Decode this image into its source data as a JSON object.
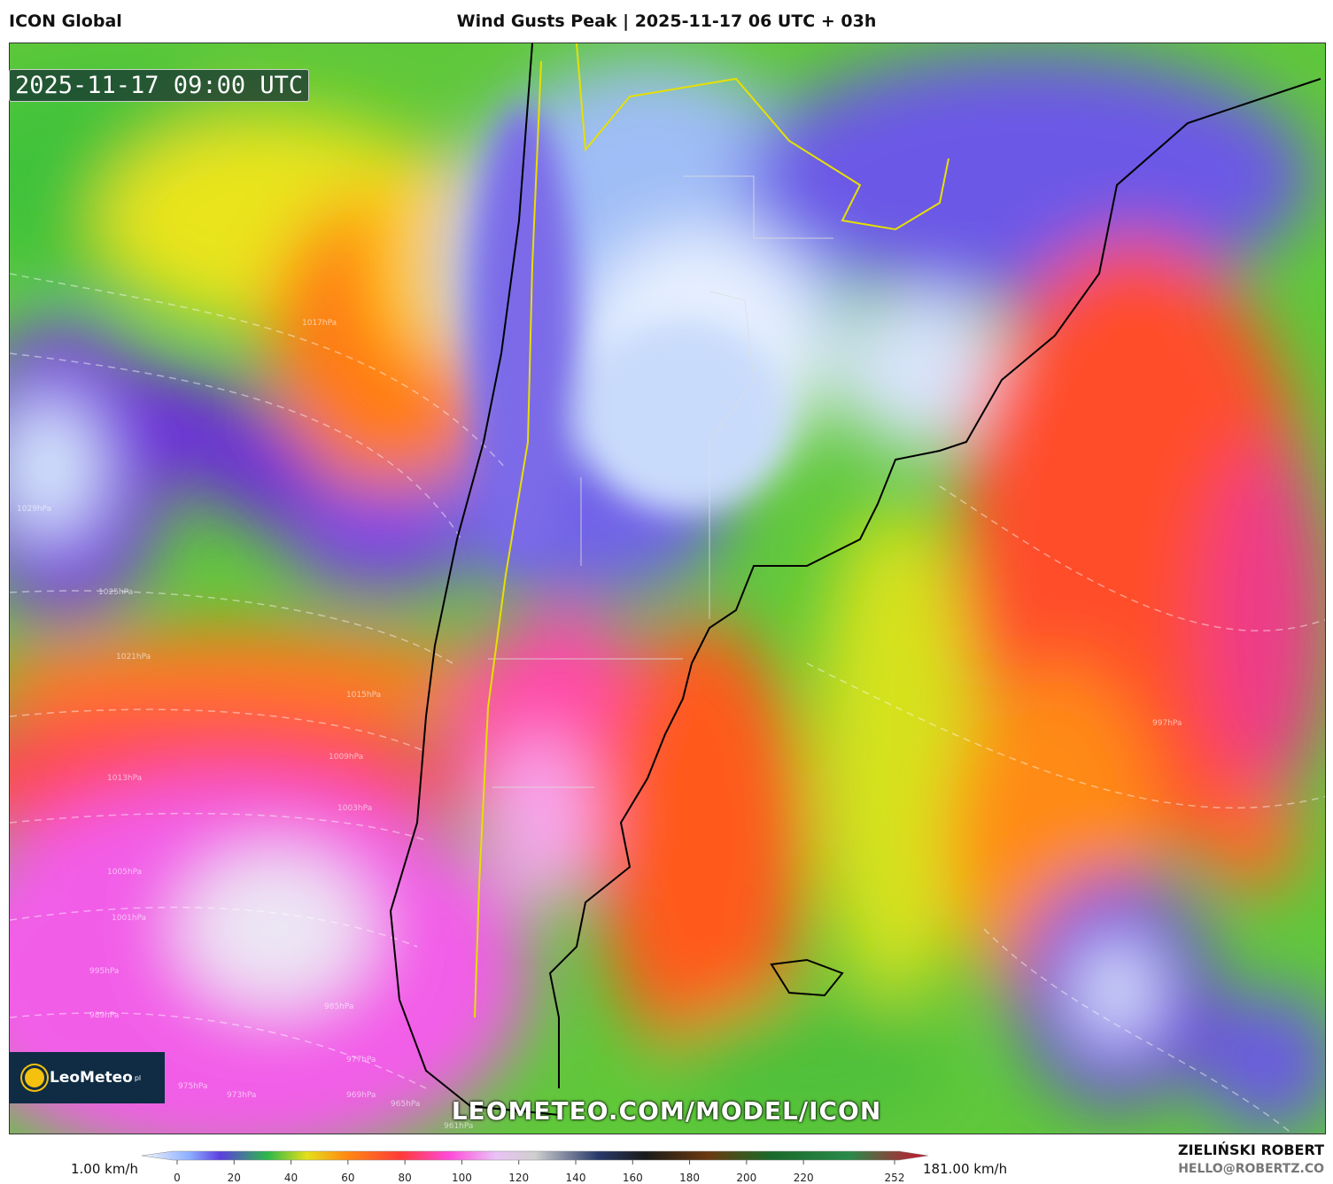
{
  "header": {
    "model": "ICON Global",
    "title": "Wind Gusts Peak | 2025-11-17 06 UTC + 03h"
  },
  "map": {
    "valid_time": "2025-11-17 09:00 UTC",
    "watermark": "LEOMETEO.COM/MODEL/ICON",
    "logo": "LeoMeteo",
    "logo_suffix": "pl",
    "isobar_labels": [
      "1029hPa",
      "1025hPa",
      "1021hPa",
      "1017hPa",
      "1015hPa",
      "1013hPa",
      "1009hPa",
      "1005hPa",
      "1003hPa",
      "1001hPa",
      "997hPa",
      "995hPa",
      "989hPa",
      "985hPa",
      "977hPa",
      "975hPa",
      "973hPa",
      "969hPa",
      "965hPa",
      "961hPa"
    ]
  },
  "colorbar": {
    "min_label": "1.00 km/h",
    "max_label": "181.00 km/h",
    "ticks": [
      0,
      20,
      40,
      60,
      80,
      100,
      120,
      140,
      160,
      180,
      200,
      220,
      252
    ]
  },
  "footer": {
    "author": "ZIELIŃSKI ROBERT",
    "email": "HELLO@ROBERTZ.CO"
  }
}
